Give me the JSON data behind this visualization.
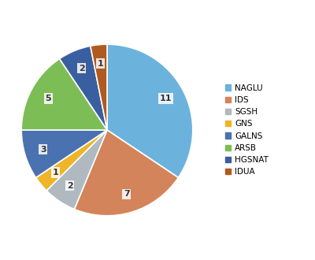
{
  "labels": [
    "NAGLU",
    "IDS",
    "SGSH",
    "GNS",
    "GALNS",
    "ARSB",
    "HGSNAT",
    "IDUA"
  ],
  "values": [
    11,
    7,
    2,
    1,
    3,
    5,
    2,
    1
  ],
  "colors": [
    "#6BB3DC",
    "#D4845A",
    "#B0B8C0",
    "#F0B429",
    "#4A72B0",
    "#7DBD55",
    "#3A5FA0",
    "#B05A20"
  ],
  "startangle": 90,
  "figsize": [
    4.0,
    3.3
  ],
  "dpi": 100,
  "label_fontsize": 8,
  "legend_fontsize": 7.5,
  "legend_marker_colors": [
    "#6BB3DC",
    "#D4845A",
    "#B0B8C0",
    "#F0B429",
    "#4A72B0",
    "#7DBD55",
    "#3A5FA0",
    "#B05A20"
  ]
}
